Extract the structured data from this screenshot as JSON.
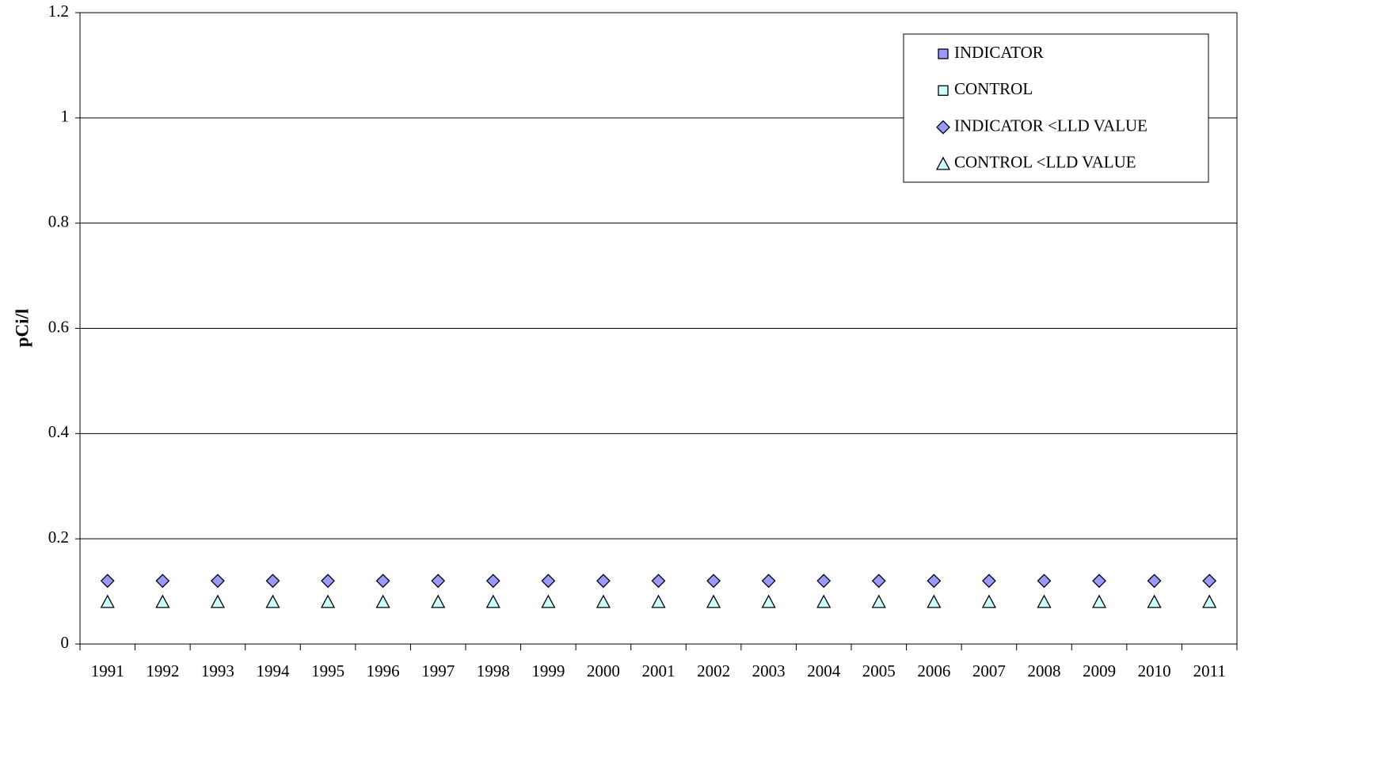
{
  "chart_data": {
    "type": "scatter",
    "ylabel": "pCi/l",
    "categories": [
      "1991",
      "1992",
      "1993",
      "1994",
      "1995",
      "1996",
      "1997",
      "1998",
      "1999",
      "2000",
      "2001",
      "2002",
      "2003",
      "2004",
      "2005",
      "2006",
      "2007",
      "2008",
      "2009",
      "2010",
      "2011"
    ],
    "series": [
      {
        "name": "INDICATOR",
        "color": "#9999ff",
        "marker": "square",
        "values": [
          null,
          null,
          null,
          null,
          null,
          null,
          null,
          null,
          null,
          null,
          null,
          null,
          null,
          null,
          null,
          null,
          null,
          null,
          null,
          null,
          null
        ]
      },
      {
        "name": "CONTROL",
        "color": "#ccffff",
        "marker": "square",
        "values": [
          null,
          null,
          null,
          null,
          null,
          null,
          null,
          null,
          null,
          null,
          null,
          null,
          null,
          null,
          null,
          null,
          null,
          null,
          null,
          null,
          null
        ]
      },
      {
        "name": "INDICATOR <LLD VALUE",
        "color": "#9999ff",
        "marker": "diamond",
        "values": [
          0.12,
          0.12,
          0.12,
          0.12,
          0.12,
          0.12,
          0.12,
          0.12,
          0.12,
          0.12,
          0.12,
          0.12,
          0.12,
          0.12,
          0.12,
          0.12,
          0.12,
          0.12,
          0.12,
          0.12,
          0.12
        ]
      },
      {
        "name": "CONTROL <LLD VALUE",
        "color": "#ccffff",
        "marker": "triangle",
        "values": [
          0.08,
          0.08,
          0.08,
          0.08,
          0.08,
          0.08,
          0.08,
          0.08,
          0.08,
          0.08,
          0.08,
          0.08,
          0.08,
          0.08,
          0.08,
          0.08,
          0.08,
          0.08,
          0.08,
          0.08,
          0.08
        ]
      }
    ],
    "ylim": [
      0,
      1.2
    ],
    "yticks": [
      0,
      0.2,
      0.4,
      0.6,
      0.8,
      1,
      1.2
    ],
    "grid": true,
    "legend": "top-right"
  }
}
